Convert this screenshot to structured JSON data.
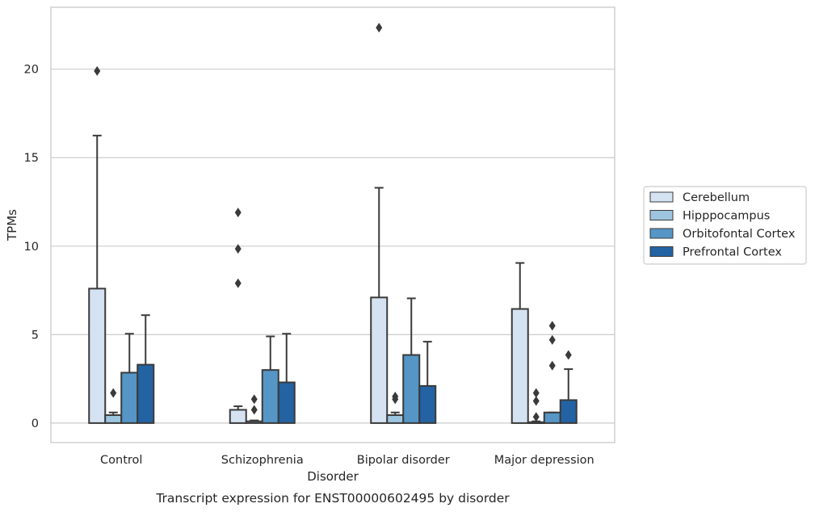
{
  "chart_data": {
    "type": "bar",
    "xlabel": "Disorder",
    "ylabel": "TPMs",
    "caption": "Transcript expression for ENST00000602495 by disorder",
    "categories": [
      "Control",
      "Schizophrenia",
      "Bipolar disorder",
      "Major depression"
    ],
    "ylim": [
      -1.1,
      23.5
    ],
    "yticks": [
      0,
      5,
      10,
      15,
      20
    ],
    "grid": "horizontal",
    "legend_position": "right",
    "series": [
      {
        "name": "Cerebellum",
        "color": "#d4e2f1",
        "values": [
          7.6,
          0.75,
          7.1,
          6.45
        ],
        "error_upper": [
          16.25,
          0.95,
          13.3,
          9.05
        ],
        "outliers": [
          [
            19.9
          ],
          [
            11.9,
            9.85,
            7.9
          ],
          [
            22.35
          ],
          []
        ]
      },
      {
        "name": "Hipppocampus",
        "color": "#9dc5df",
        "values": [
          0.45,
          0.1,
          0.45,
          0.05
        ],
        "error_upper": [
          0.6,
          0.15,
          0.6,
          0.1
        ],
        "outliers": [
          [
            1.7
          ],
          [
            1.35,
            0.75
          ],
          [
            1.5,
            1.35
          ],
          [
            1.7,
            1.25,
            0.35
          ]
        ]
      },
      {
        "name": "Orbitofontal Cortex",
        "color": "#5596c6",
        "values": [
          2.85,
          3.0,
          3.85,
          0.6
        ],
        "error_upper": [
          5.05,
          4.9,
          7.05,
          0.6
        ],
        "outliers": [
          [],
          [],
          [],
          [
            5.5,
            4.7,
            3.25
          ]
        ]
      },
      {
        "name": "Prefrontal Cortex",
        "color": "#2363a3",
        "values": [
          3.3,
          2.3,
          2.1,
          1.3
        ],
        "error_upper": [
          6.1,
          5.05,
          4.6,
          3.05
        ],
        "outliers": [
          [],
          [],
          [],
          [
            3.85
          ]
        ]
      }
    ]
  }
}
